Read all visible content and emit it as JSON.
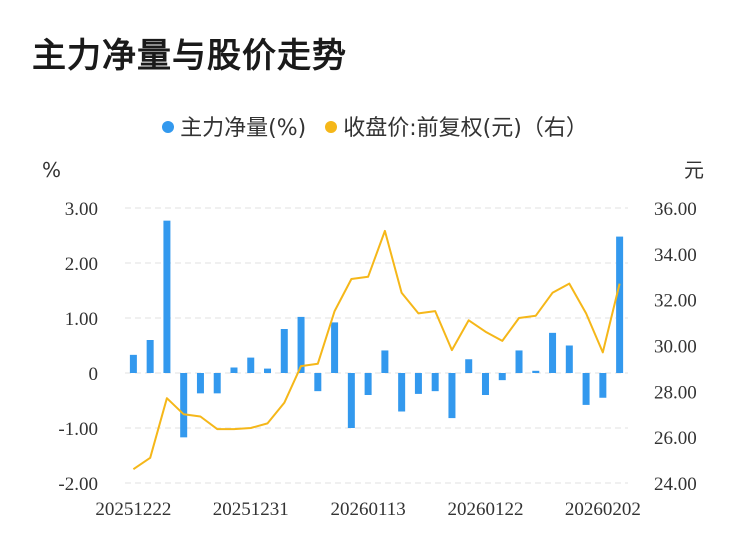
{
  "title": "主力净量与股价走势",
  "colors": {
    "bar": "#3399ee",
    "line": "#f5b719",
    "grid": "#e6e6e6"
  },
  "chart_data": {
    "type": "bar+line",
    "title": "主力净量与股价走势",
    "left_unit": "%",
    "right_unit": "元",
    "legend": [
      {
        "label": "主力净量(%)",
        "color": "#3399ee"
      },
      {
        "label": "收盘价:前复权(元)（右）",
        "color": "#f5b719"
      }
    ],
    "x_tick_labels": [
      "20251222",
      "20251231",
      "20260113",
      "20260122",
      "20260202"
    ],
    "x_tick_indices": [
      0,
      7,
      14,
      21,
      28
    ],
    "left_axis": {
      "min": -2,
      "max": 3,
      "ticks": [
        "3.00",
        "2.00",
        "1.00",
        "0",
        "-1.00",
        "-2.00"
      ],
      "tick_values": [
        3,
        2,
        1,
        0,
        -1,
        -2
      ]
    },
    "right_axis": {
      "min": 24,
      "max": 36,
      "ticks": [
        "36.00",
        "34.00",
        "32.00",
        "30.00",
        "28.00",
        "26.00",
        "24.00"
      ],
      "tick_values": [
        36,
        34,
        32,
        30,
        28,
        26,
        24
      ]
    },
    "series": [
      {
        "name": "主力净量(%)",
        "type": "bar",
        "axis": "left",
        "values": [
          0.33,
          0.6,
          2.77,
          -1.17,
          -0.37,
          -0.37,
          0.1,
          0.28,
          0.08,
          0.8,
          1.02,
          -0.33,
          0.92,
          -1.0,
          -0.4,
          0.41,
          -0.7,
          -0.38,
          -0.33,
          -0.82,
          0.25,
          -0.4,
          -0.13,
          0.41,
          0.04,
          0.73,
          0.5,
          -0.58,
          -0.45,
          2.48
        ]
      },
      {
        "name": "收盘价:前复权(元)（右）",
        "type": "line",
        "axis": "right",
        "values": [
          24.6,
          25.1,
          27.7,
          27.0,
          26.9,
          26.35,
          26.35,
          26.4,
          26.6,
          27.5,
          29.1,
          29.2,
          31.5,
          32.9,
          33.0,
          35.0,
          32.3,
          31.4,
          31.5,
          29.8,
          31.1,
          30.6,
          30.2,
          31.2,
          31.3,
          32.3,
          32.7,
          31.4,
          29.7,
          32.7
        ]
      }
    ]
  }
}
